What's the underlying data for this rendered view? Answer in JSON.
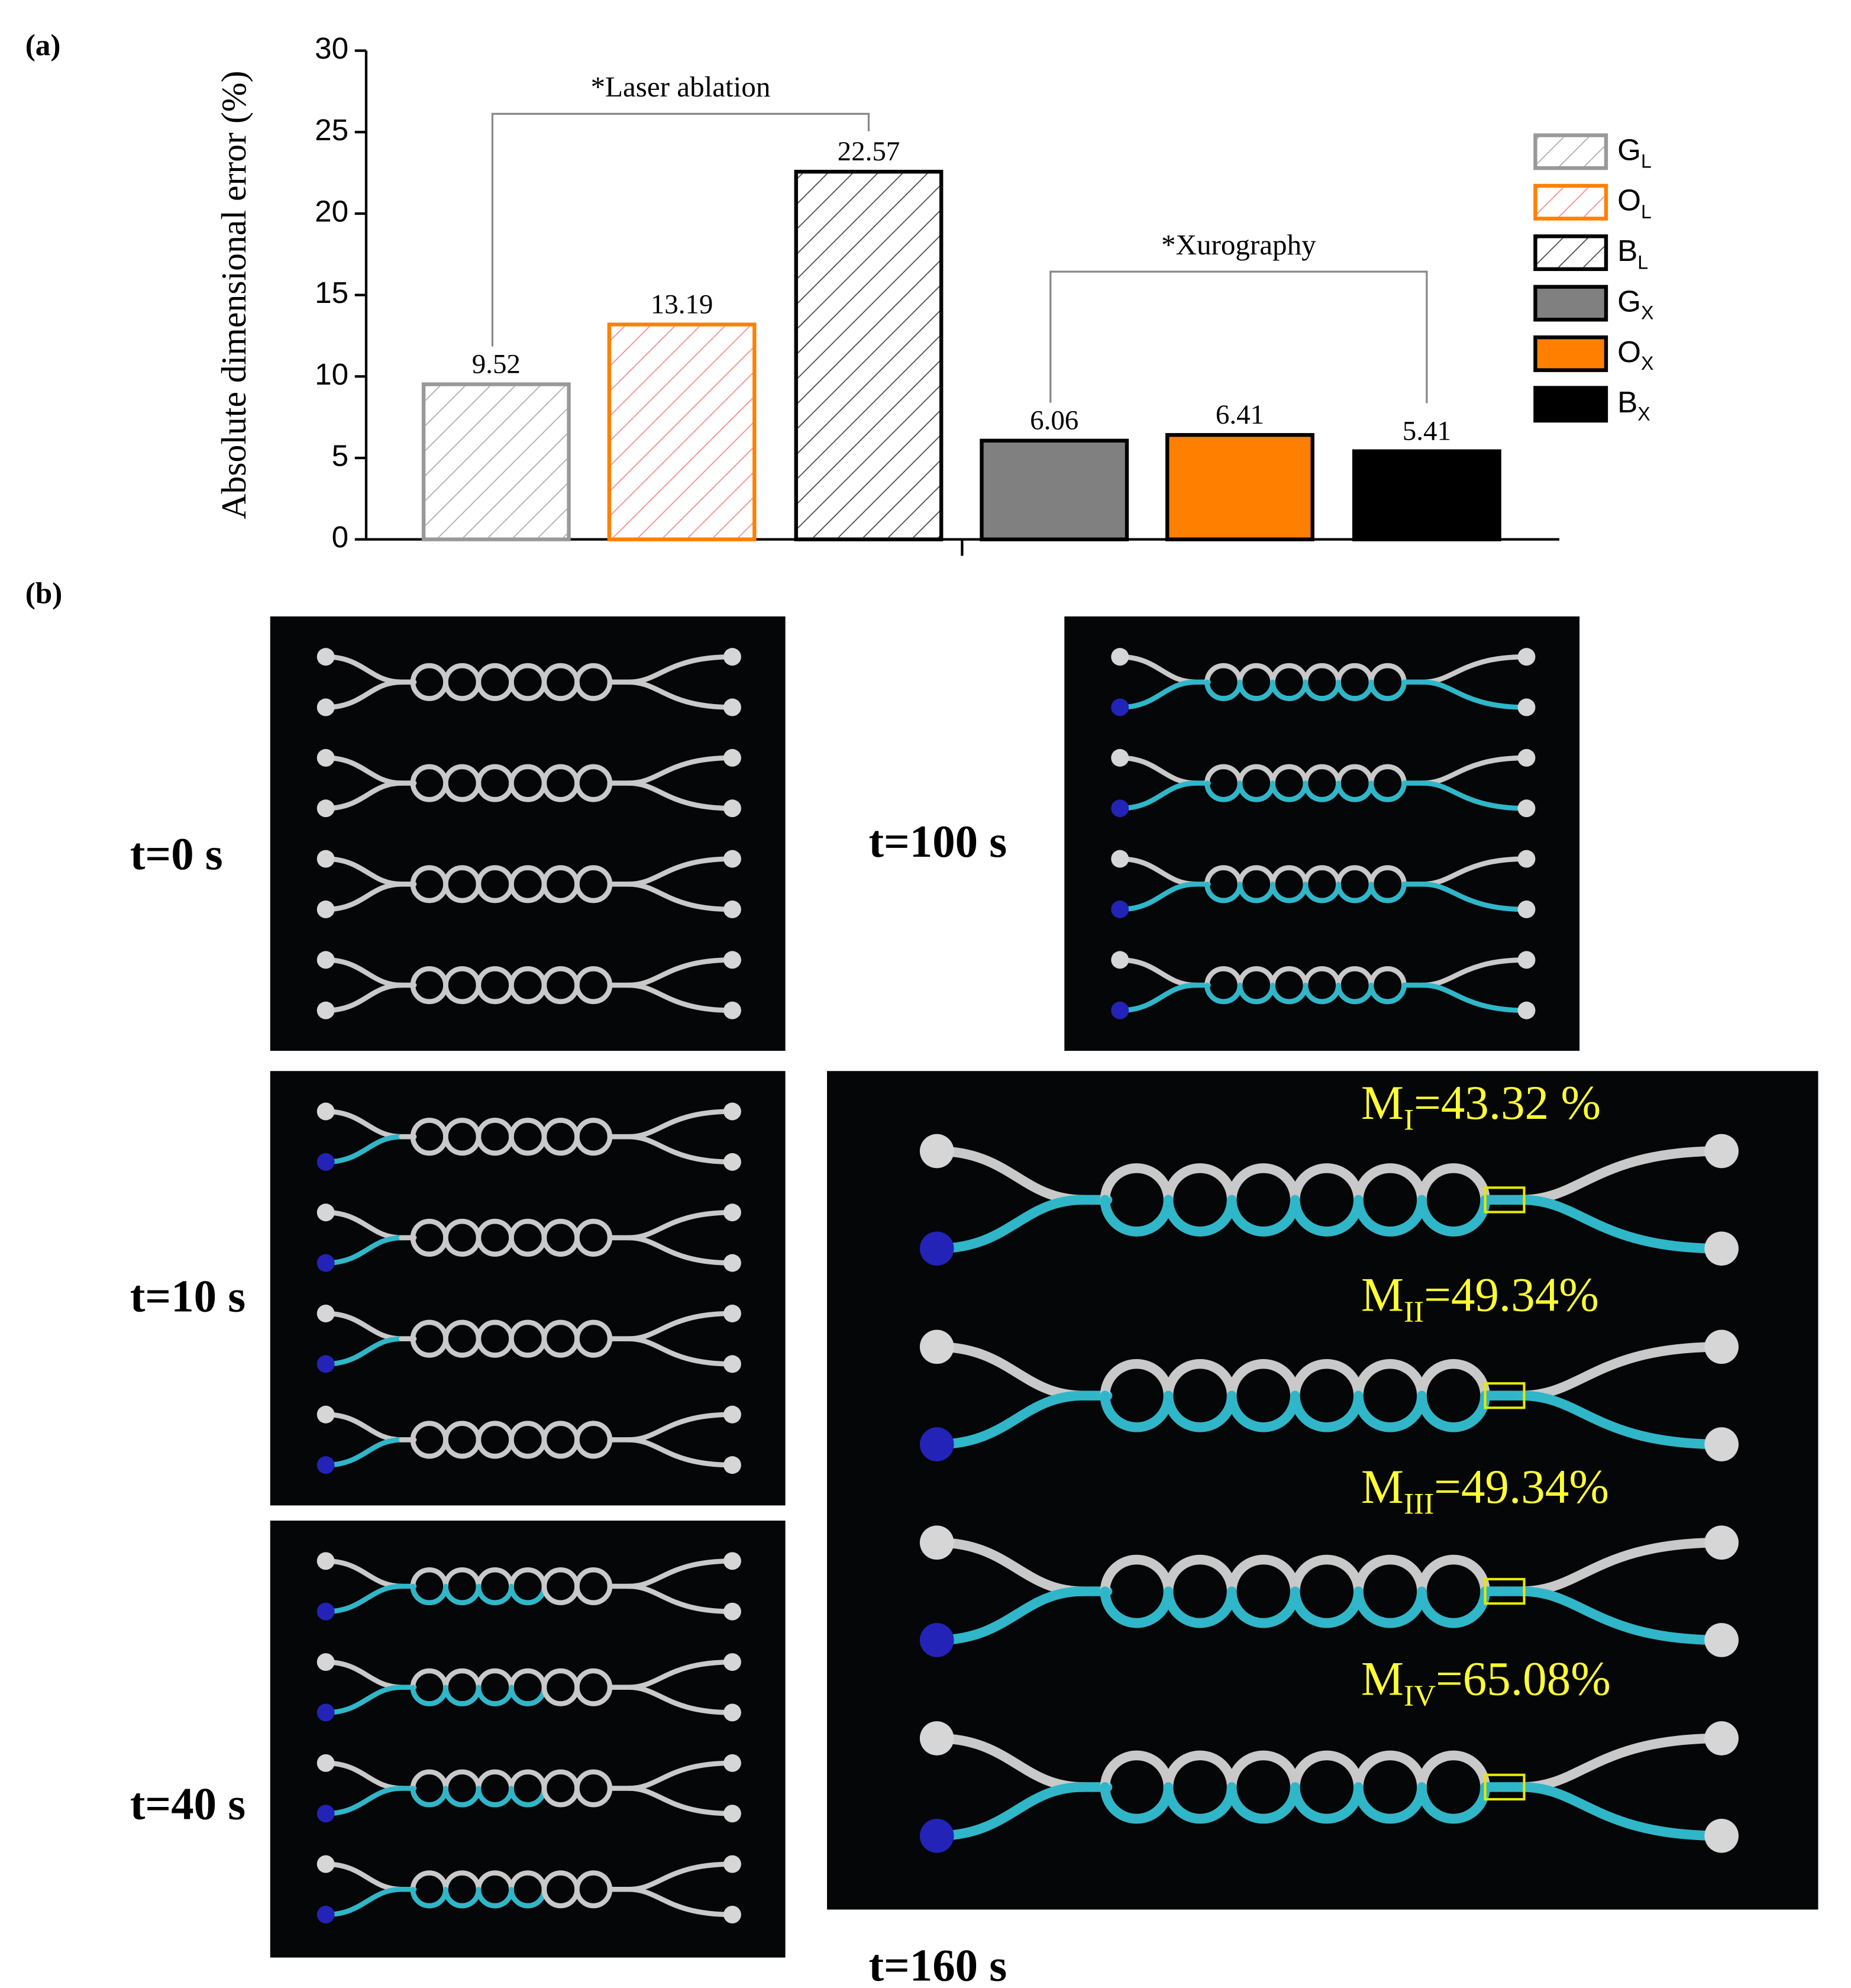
{
  "panel_labels": [
    "(a)",
    "(b)"
  ],
  "chart_data": {
    "type": "bar",
    "ylabel": "Absolute dimensional error (%)",
    "ylim": [
      0,
      30
    ],
    "yticks": [
      0,
      5,
      10,
      15,
      20,
      25,
      30
    ],
    "series": [
      {
        "name": "G",
        "subscript": "L",
        "color": "#999999",
        "hatched": true,
        "hatch_color": "#aaaaaa",
        "values": [
          9.52
        ]
      },
      {
        "name": "O",
        "subscript": "L",
        "color": "#ff8000",
        "hatched": true,
        "hatch_color": "#f08c8c",
        "values": [
          13.19
        ]
      },
      {
        "name": "B",
        "subscript": "L",
        "color": "#000000",
        "hatched": true,
        "hatch_color": "#444444",
        "values": [
          22.57
        ]
      },
      {
        "name": "G",
        "subscript": "X",
        "color": "#808080",
        "hatched": false,
        "values": [
          6.06
        ]
      },
      {
        "name": "O",
        "subscript": "X",
        "color": "#ff8000",
        "hatched": false,
        "values": [
          6.41
        ]
      },
      {
        "name": "B",
        "subscript": "X",
        "color": "#000000",
        "hatched": false,
        "values": [
          5.41
        ]
      }
    ],
    "annotations": [
      "*Laser ablation",
      "*Xurography"
    ]
  },
  "photos": [
    {
      "label": "t=0 s"
    },
    {
      "label": "t=100 s"
    },
    {
      "label": "t=10 s"
    },
    {
      "label": "t=40 s"
    },
    {
      "label": "t=160 s"
    }
  ],
  "mixing_labels": [
    {
      "symbol": "M",
      "subscript": "I",
      "text": "=43.32 %"
    },
    {
      "symbol": "M",
      "subscript": "II",
      "text": "=49.34%"
    },
    {
      "symbol": "M",
      "subscript": "III",
      "text": "=49.34%"
    },
    {
      "symbol": "M",
      "subscript": "IV",
      "text": "=65.08%"
    }
  ]
}
